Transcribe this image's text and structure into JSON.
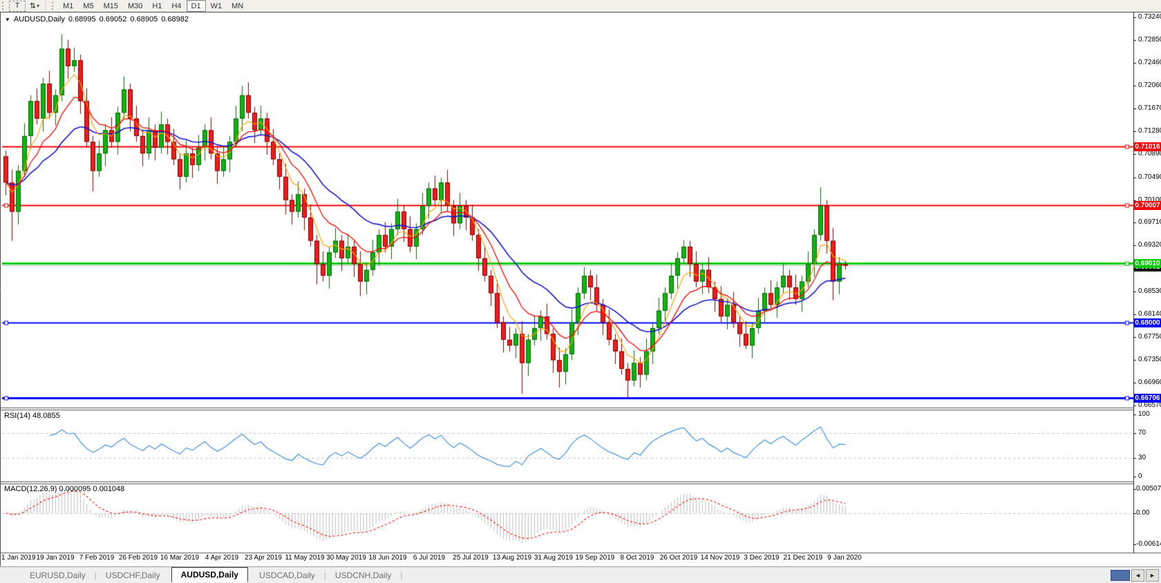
{
  "toolbar": {
    "text_tool": "T",
    "arrows_icon": "⇅",
    "caret_icon": "▾",
    "timeframes": [
      "M1",
      "M5",
      "M15",
      "M30",
      "H1",
      "H4",
      "D1",
      "W1",
      "MN"
    ],
    "active_timeframe": "D1"
  },
  "chart_header": {
    "collapse_icon": "▼",
    "symbol_label": "AUDUSD,Daily",
    "open": "0.68995",
    "high": "0.69052",
    "low": "0.68905",
    "close": "0.68982"
  },
  "tabs": {
    "items": [
      {
        "label": "EURUSD,Daily",
        "active": false
      },
      {
        "label": "USDCHF,Daily",
        "active": false
      },
      {
        "label": "AUDUSD,Daily",
        "active": true
      },
      {
        "label": "USDCAD,Daily",
        "active": false
      },
      {
        "label": "USDCNH,Daily",
        "active": false
      }
    ],
    "scroll_left_icon": "◄",
    "scroll_right_icon": "►"
  },
  "colors": {
    "bull_fill": "#12b212",
    "bull_stroke": "#056605",
    "bear_fill": "#ee1c1c",
    "bear_stroke": "#7e0000",
    "ma_fast": "#ffa500",
    "ma_mid": "#ff0000",
    "ma_slow": "#1414cc",
    "rsi_line": "#3f8fde",
    "level_dash": "#c8c8c8",
    "hist_bar": "#bdbdbd",
    "macd_signal": "#ff0000",
    "panel_border": "#555555",
    "axis_text": "#000000"
  },
  "chart_data": {
    "type": "candlestick",
    "symbol": "AUDUSD",
    "timeframe": "Daily",
    "current_bar": {
      "open": 0.68995,
      "high": 0.69052,
      "low": 0.68905,
      "close": 0.68982
    },
    "y_ticks": [
      "0.73240",
      "0.72850",
      "0.72460",
      "0.72060",
      "0.71670",
      "0.71280",
      "0.70890",
      "0.70490",
      "0.70100",
      "0.69710",
      "0.69320",
      "0.68920",
      "0.68530",
      "0.68140",
      "0.67750",
      "0.67350",
      "0.66960",
      "0.66570"
    ],
    "x_labels": [
      "1 Jan 2019",
      "19 Jan 2019",
      "7 Feb 2019",
      "26 Feb 2019",
      "16 Mar 2019",
      "4 Apr 2019",
      "23 Apr 2019",
      "11 May 2019",
      "30 May 2019",
      "18 Jun 2019",
      "6 Jul 2019",
      "25 Jul 2019",
      "13 Aug 2019",
      "31 Aug 2019",
      "19 Sep 2019",
      "8 Oct 2019",
      "26 Oct 2019",
      "14 Nov 2019",
      "3 Dec 2019",
      "21 Dec 2019",
      "9 Jan 2020"
    ],
    "horizontal_lines": [
      {
        "price": 0.71016,
        "label": "0.71016",
        "color": "#ff0000",
        "width": 2,
        "left_handle": false
      },
      {
        "price": 0.70007,
        "label": "0.70007",
        "color": "#ff0000",
        "width": 2,
        "left_handle": true
      },
      {
        "price": 0.6901,
        "label": "0.69010",
        "color": "#00cc00",
        "width": 3,
        "left_handle": false
      },
      {
        "price": 0.68,
        "label": "0.68000",
        "color": "#0000ff",
        "width": 2,
        "left_handle": true
      },
      {
        "price": 0.66706,
        "label": "0.66706",
        "color": "#0000ff",
        "width": 3,
        "left_handle": true
      }
    ],
    "bid_line": {
      "price": 0.68982,
      "label": "0.68982",
      "line_color": "#b8b8b8",
      "label_bg": "#000000"
    },
    "rsi": {
      "label": "RSI(14) 48.0855",
      "ticks": [
        "100",
        "70",
        "30",
        "0"
      ],
      "levels": [
        70,
        30
      ]
    },
    "macd": {
      "label": "MACD(12,26,9) 0.000095 0.001048",
      "ticks": [
        "0.005076",
        "0.00",
        "-0.006148"
      ]
    },
    "ohlc": [
      [
        0.7085,
        0.7095,
        0.7018,
        0.704
      ],
      [
        0.704,
        0.7062,
        0.694,
        0.699
      ],
      [
        0.699,
        0.707,
        0.6968,
        0.706
      ],
      [
        0.706,
        0.7142,
        0.705,
        0.712
      ],
      [
        0.712,
        0.719,
        0.7098,
        0.718
      ],
      [
        0.718,
        0.7202,
        0.714,
        0.715
      ],
      [
        0.715,
        0.722,
        0.7128,
        0.721
      ],
      [
        0.721,
        0.7232,
        0.715,
        0.716
      ],
      [
        0.716,
        0.72,
        0.7138,
        0.719
      ],
      [
        0.719,
        0.7295,
        0.718,
        0.727
      ],
      [
        0.727,
        0.7285,
        0.7218,
        0.724
      ],
      [
        0.724,
        0.7272,
        0.723,
        0.725
      ],
      [
        0.725,
        0.726,
        0.7158,
        0.718
      ],
      [
        0.718,
        0.7202,
        0.71,
        0.711
      ],
      [
        0.711,
        0.712,
        0.7025,
        0.706
      ],
      [
        0.706,
        0.7112,
        0.705,
        0.709
      ],
      [
        0.709,
        0.714,
        0.7068,
        0.713
      ],
      [
        0.713,
        0.7152,
        0.71,
        0.711
      ],
      [
        0.711,
        0.717,
        0.7088,
        0.716
      ],
      [
        0.716,
        0.7222,
        0.715,
        0.72
      ],
      [
        0.72,
        0.721,
        0.7128,
        0.715
      ],
      [
        0.715,
        0.7172,
        0.711,
        0.712
      ],
      [
        0.712,
        0.713,
        0.7068,
        0.709
      ],
      [
        0.709,
        0.7152,
        0.708,
        0.713
      ],
      [
        0.713,
        0.714,
        0.7078,
        0.71
      ],
      [
        0.71,
        0.7162,
        0.709,
        0.714
      ],
      [
        0.714,
        0.715,
        0.7088,
        0.711
      ],
      [
        0.711,
        0.7132,
        0.707,
        0.708
      ],
      [
        0.708,
        0.709,
        0.7028,
        0.705
      ],
      [
        0.705,
        0.7112,
        0.704,
        0.709
      ],
      [
        0.709,
        0.71,
        0.7048,
        0.707
      ],
      [
        0.707,
        0.7122,
        0.706,
        0.71
      ],
      [
        0.71,
        0.714,
        0.7078,
        0.713
      ],
      [
        0.713,
        0.7152,
        0.708,
        0.709
      ],
      [
        0.709,
        0.71,
        0.7038,
        0.706
      ],
      [
        0.706,
        0.7102,
        0.705,
        0.708
      ],
      [
        0.708,
        0.712,
        0.7058,
        0.711
      ],
      [
        0.711,
        0.7172,
        0.71,
        0.715
      ],
      [
        0.715,
        0.7206,
        0.7128,
        0.719
      ],
      [
        0.719,
        0.7212,
        0.715,
        0.716
      ],
      [
        0.716,
        0.717,
        0.7108,
        0.713
      ],
      [
        0.713,
        0.7172,
        0.712,
        0.715
      ],
      [
        0.715,
        0.716,
        0.7088,
        0.711
      ],
      [
        0.711,
        0.7132,
        0.707,
        0.708
      ],
      [
        0.708,
        0.709,
        0.7028,
        0.705
      ],
      [
        0.705,
        0.7072,
        0.6985,
        0.701
      ],
      [
        0.701,
        0.702,
        0.6968,
        0.699
      ],
      [
        0.699,
        0.7042,
        0.698,
        0.702
      ],
      [
        0.702,
        0.703,
        0.6958,
        0.698
      ],
      [
        0.698,
        0.7002,
        0.693,
        0.694
      ],
      [
        0.694,
        0.695,
        0.6865,
        0.69
      ],
      [
        0.69,
        0.6922,
        0.687,
        0.688
      ],
      [
        0.688,
        0.693,
        0.6858,
        0.692
      ],
      [
        0.692,
        0.6962,
        0.691,
        0.694
      ],
      [
        0.694,
        0.695,
        0.6888,
        0.691
      ],
      [
        0.691,
        0.6952,
        0.69,
        0.693
      ],
      [
        0.693,
        0.694,
        0.6878,
        0.69
      ],
      [
        0.69,
        0.6922,
        0.6845,
        0.687
      ],
      [
        0.687,
        0.69,
        0.6848,
        0.689
      ],
      [
        0.689,
        0.6942,
        0.688,
        0.692
      ],
      [
        0.692,
        0.696,
        0.6898,
        0.695
      ],
      [
        0.695,
        0.6972,
        0.692,
        0.693
      ],
      [
        0.693,
        0.697,
        0.6908,
        0.696
      ],
      [
        0.696,
        0.7012,
        0.695,
        0.699
      ],
      [
        0.699,
        0.7,
        0.6938,
        0.696
      ],
      [
        0.696,
        0.6982,
        0.692,
        0.693
      ],
      [
        0.693,
        0.697,
        0.6908,
        0.696
      ],
      [
        0.696,
        0.7022,
        0.695,
        0.7
      ],
      [
        0.7,
        0.704,
        0.6978,
        0.703
      ],
      [
        0.703,
        0.7052,
        0.7,
        0.701
      ],
      [
        0.701,
        0.7048,
        0.6988,
        0.704
      ],
      [
        0.704,
        0.7062,
        0.699,
        0.7
      ],
      [
        0.7,
        0.701,
        0.6948,
        0.697
      ],
      [
        0.697,
        0.7022,
        0.696,
        0.7
      ],
      [
        0.7,
        0.701,
        0.6958,
        0.698
      ],
      [
        0.698,
        0.7002,
        0.694,
        0.695
      ],
      [
        0.695,
        0.696,
        0.6888,
        0.691
      ],
      [
        0.691,
        0.6932,
        0.687,
        0.688
      ],
      [
        0.688,
        0.689,
        0.6828,
        0.685
      ],
      [
        0.685,
        0.6872,
        0.679,
        0.68
      ],
      [
        0.68,
        0.681,
        0.6748,
        0.677
      ],
      [
        0.677,
        0.6792,
        0.675,
        0.676
      ],
      [
        0.676,
        0.679,
        0.6738,
        0.678
      ],
      [
        0.678,
        0.6802,
        0.6677,
        0.673
      ],
      [
        0.673,
        0.678,
        0.6708,
        0.677
      ],
      [
        0.677,
        0.6812,
        0.676,
        0.679
      ],
      [
        0.679,
        0.682,
        0.6768,
        0.681
      ],
      [
        0.681,
        0.6832,
        0.677,
        0.678
      ],
      [
        0.678,
        0.679,
        0.6713,
        0.6735
      ],
      [
        0.6735,
        0.6757,
        0.6688,
        0.6715
      ],
      [
        0.6715,
        0.6755,
        0.6693,
        0.6745
      ],
      [
        0.6745,
        0.6822,
        0.6735,
        0.68
      ],
      [
        0.68,
        0.686,
        0.6778,
        0.685
      ],
      [
        0.685,
        0.6895,
        0.684,
        0.688
      ],
      [
        0.688,
        0.689,
        0.6838,
        0.686
      ],
      [
        0.686,
        0.6882,
        0.682,
        0.683
      ],
      [
        0.683,
        0.684,
        0.6778,
        0.68
      ],
      [
        0.68,
        0.6822,
        0.676,
        0.677
      ],
      [
        0.677,
        0.678,
        0.6728,
        0.675
      ],
      [
        0.675,
        0.6772,
        0.671,
        0.672
      ],
      [
        0.672,
        0.673,
        0.6671,
        0.67
      ],
      [
        0.67,
        0.6752,
        0.669,
        0.673
      ],
      [
        0.673,
        0.674,
        0.6688,
        0.671
      ],
      [
        0.671,
        0.6772,
        0.67,
        0.675
      ],
      [
        0.675,
        0.68,
        0.6728,
        0.679
      ],
      [
        0.679,
        0.6842,
        0.678,
        0.682
      ],
      [
        0.682,
        0.686,
        0.6798,
        0.685
      ],
      [
        0.685,
        0.6902,
        0.684,
        0.688
      ],
      [
        0.688,
        0.692,
        0.6858,
        0.691
      ],
      [
        0.691,
        0.6941,
        0.69,
        0.693
      ],
      [
        0.693,
        0.694,
        0.6878,
        0.69
      ],
      [
        0.69,
        0.6922,
        0.686,
        0.687
      ],
      [
        0.687,
        0.69,
        0.6848,
        0.689
      ],
      [
        0.689,
        0.6912,
        0.685,
        0.686
      ],
      [
        0.686,
        0.687,
        0.6818,
        0.684
      ],
      [
        0.684,
        0.6862,
        0.68,
        0.681
      ],
      [
        0.681,
        0.684,
        0.6788,
        0.683
      ],
      [
        0.683,
        0.6852,
        0.679,
        0.68
      ],
      [
        0.68,
        0.681,
        0.6758,
        0.678
      ],
      [
        0.678,
        0.6802,
        0.6754,
        0.676
      ],
      [
        0.676,
        0.68,
        0.6738,
        0.679
      ],
      [
        0.679,
        0.6842,
        0.678,
        0.682
      ],
      [
        0.682,
        0.686,
        0.6798,
        0.685
      ],
      [
        0.685,
        0.6872,
        0.682,
        0.683
      ],
      [
        0.683,
        0.687,
        0.6808,
        0.686
      ],
      [
        0.686,
        0.6902,
        0.685,
        0.688
      ],
      [
        0.688,
        0.689,
        0.6838,
        0.686
      ],
      [
        0.686,
        0.6882,
        0.683,
        0.684
      ],
      [
        0.684,
        0.688,
        0.6818,
        0.687
      ],
      [
        0.687,
        0.6922,
        0.686,
        0.69
      ],
      [
        0.69,
        0.696,
        0.6878,
        0.695
      ],
      [
        0.695,
        0.7032,
        0.694,
        0.7
      ],
      [
        0.7,
        0.701,
        0.6918,
        0.694
      ],
      [
        0.694,
        0.6962,
        0.6838,
        0.687
      ],
      [
        0.687,
        0.6912,
        0.6848,
        0.6902
      ],
      [
        0.68995,
        0.69052,
        0.68905,
        0.68982
      ]
    ]
  }
}
